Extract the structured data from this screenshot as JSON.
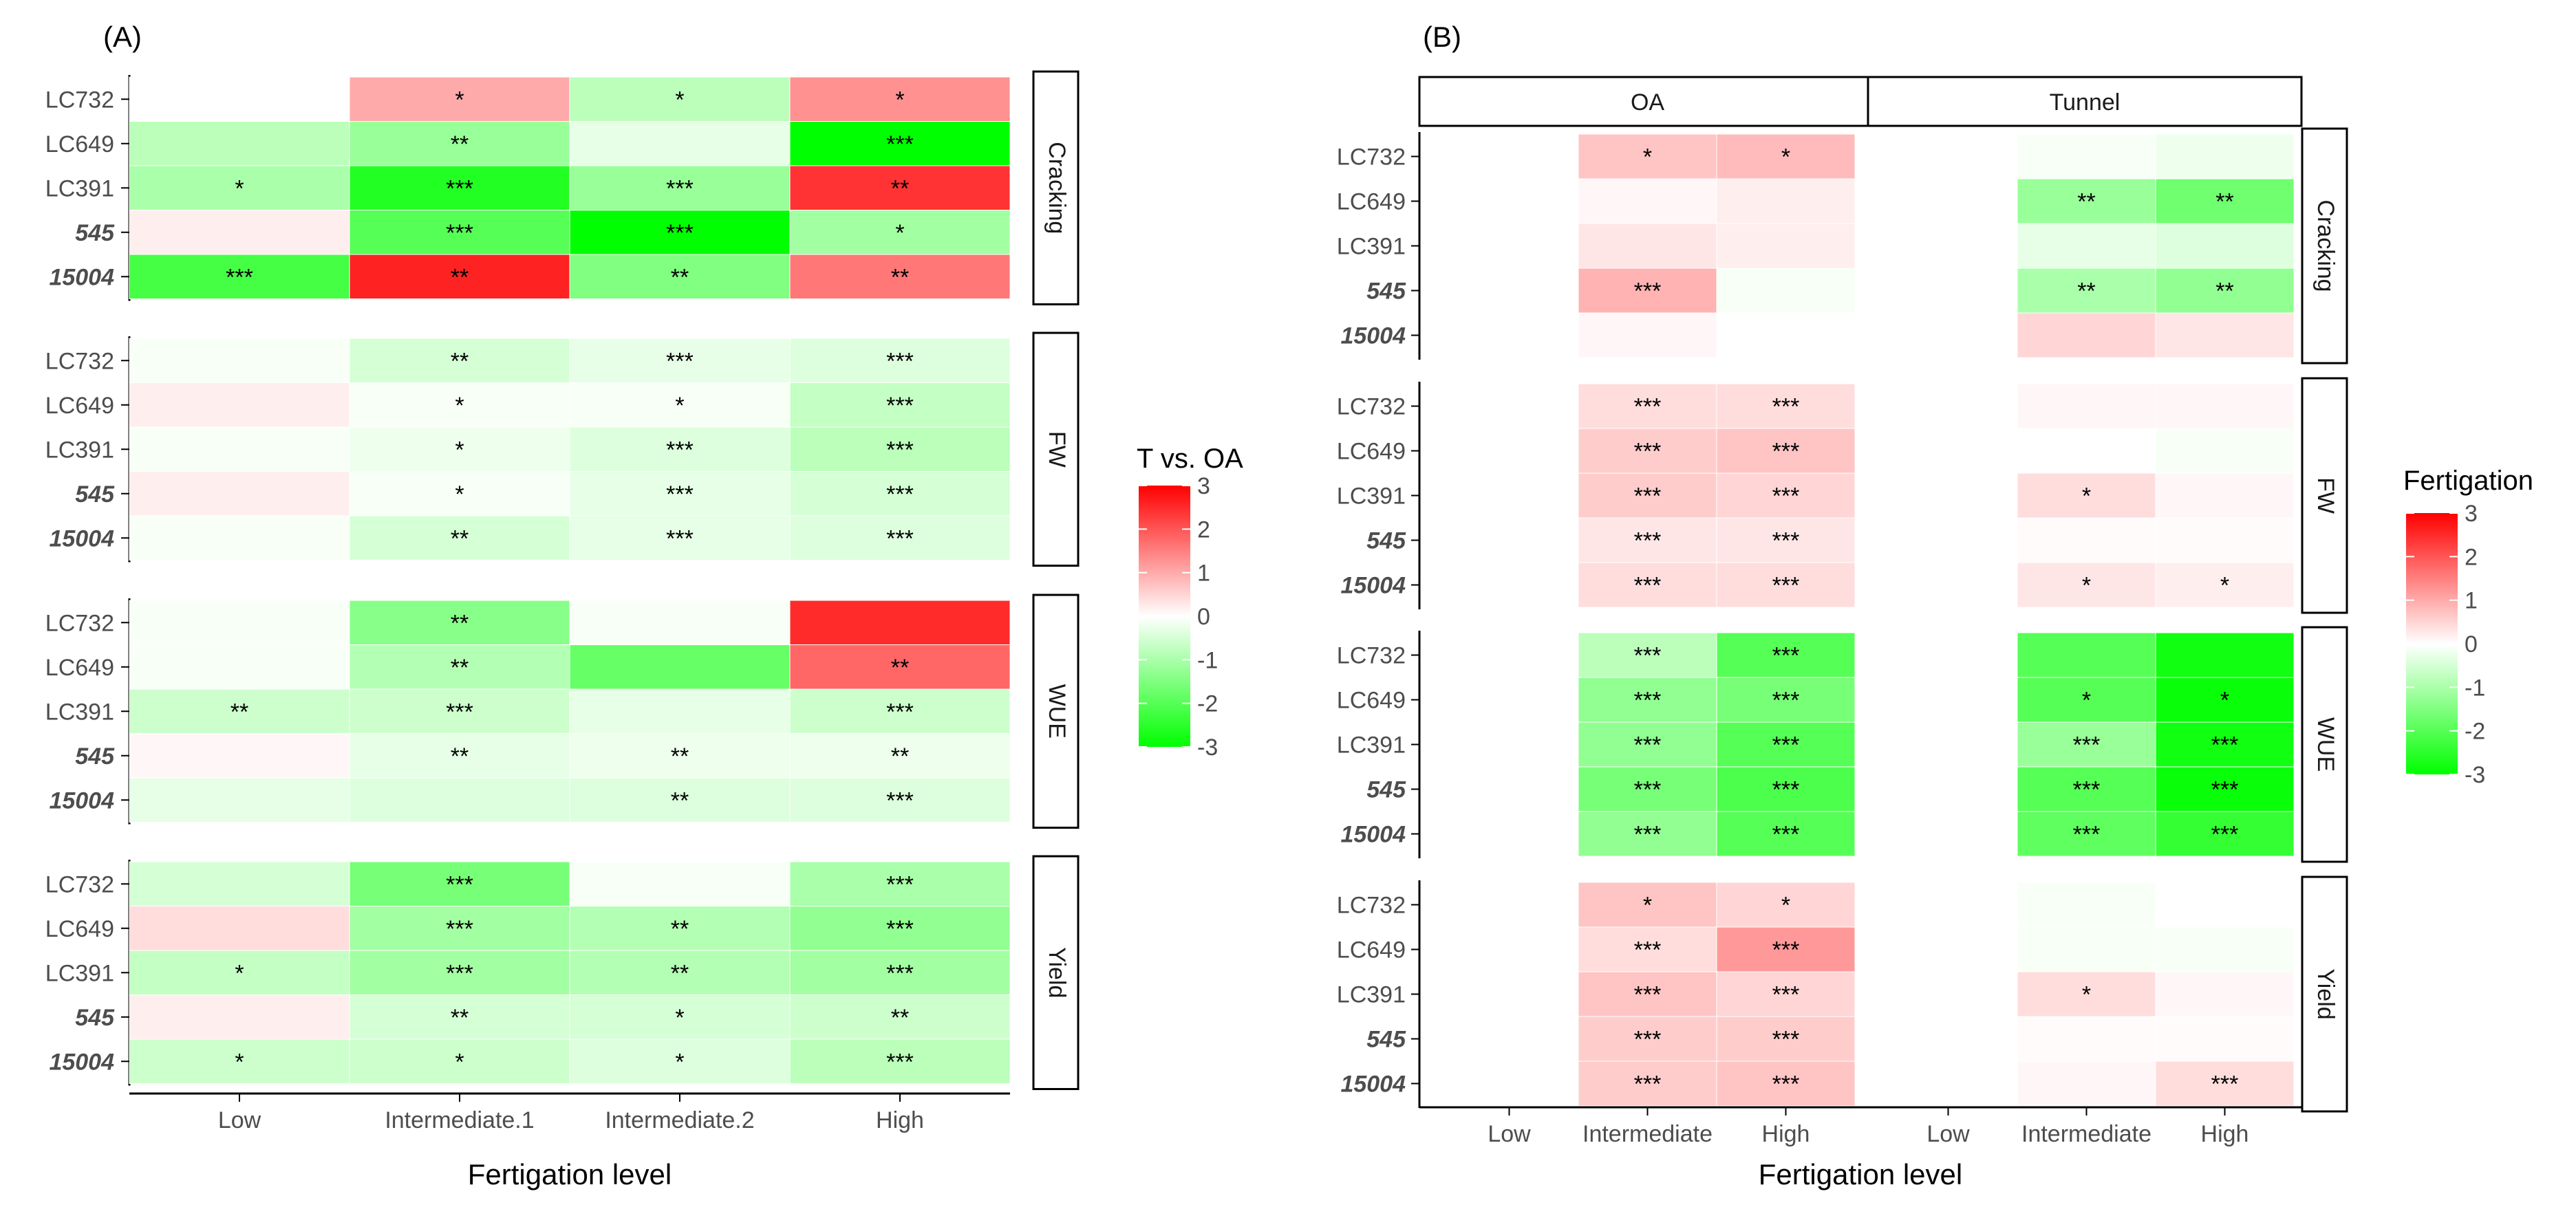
{
  "chart_data": [
    {
      "panel_label": "(A)",
      "type": "heatmap",
      "xlabel": "Fertigation level",
      "x_categories": [
        "Low",
        "Intermediate.1",
        "Intermediate.2",
        "High"
      ],
      "row_labels": [
        "LC732",
        "LC649",
        "LC391",
        "545",
        "15004"
      ],
      "italic_rows": [
        "545",
        "15004"
      ],
      "legend": {
        "title": "T vs. OA",
        "ticks": [
          3,
          2,
          1,
          0,
          -1,
          -2,
          -3
        ],
        "range": [
          -3,
          3
        ]
      },
      "facets": [
        {
          "label": "Cracking",
          "values": [
            [
              0,
              1.0,
              -0.8,
              1.3
            ],
            [
              -0.8,
              -1.2,
              -0.3,
              -3.0
            ],
            [
              -1.0,
              -2.6,
              -1.2,
              2.4
            ],
            [
              0.2,
              -2.0,
              -3.0,
              -1.1
            ],
            [
              -2.2,
              2.6,
              -1.5,
              1.6
            ]
          ],
          "stars": [
            [
              "",
              "*",
              "*",
              "*"
            ],
            [
              "",
              "**",
              "",
              "***"
            ],
            [
              "*",
              "***",
              "***",
              "**"
            ],
            [
              "",
              "***",
              "***",
              "*"
            ],
            [
              "***",
              "**",
              "**",
              "**"
            ]
          ]
        },
        {
          "label": "FW",
          "values": [
            [
              -0.1,
              -0.5,
              -0.3,
              -0.4
            ],
            [
              0.2,
              -0.1,
              -0.1,
              -0.7
            ],
            [
              -0.1,
              -0.2,
              -0.4,
              -0.8
            ],
            [
              0.2,
              -0.1,
              -0.3,
              -0.5
            ],
            [
              -0.1,
              -0.5,
              -0.3,
              -0.4
            ]
          ],
          "stars": [
            [
              "",
              "**",
              "***",
              "***"
            ],
            [
              "",
              "*",
              "*",
              "***"
            ],
            [
              "",
              "*",
              "***",
              "***"
            ],
            [
              "",
              "*",
              "***",
              "***"
            ],
            [
              "",
              "**",
              "***",
              "***"
            ]
          ]
        },
        {
          "label": "WUE",
          "values": [
            [
              -0.1,
              -1.4,
              -0.1,
              2.5
            ],
            [
              -0.1,
              -0.9,
              -1.8,
              1.8
            ],
            [
              -0.6,
              -0.6,
              -0.3,
              -0.6
            ],
            [
              0.1,
              -0.3,
              -0.2,
              -0.2
            ],
            [
              -0.3,
              -0.4,
              -0.4,
              -0.4
            ]
          ],
          "stars": [
            [
              "",
              "**",
              "",
              ""
            ],
            [
              "",
              "**",
              "",
              "**"
            ],
            [
              "**",
              "***",
              "",
              "***"
            ],
            [
              "",
              "**",
              "**",
              "**"
            ],
            [
              "",
              "",
              "**",
              "***"
            ]
          ]
        },
        {
          "label": "Yield",
          "values": [
            [
              -0.5,
              -1.6,
              -0.1,
              -1.0
            ],
            [
              0.4,
              -1.1,
              -0.9,
              -1.3
            ],
            [
              -0.7,
              -1.1,
              -0.9,
              -1.1
            ],
            [
              0.2,
              -0.5,
              -0.5,
              -0.6
            ],
            [
              -0.6,
              -0.6,
              -0.4,
              -0.8
            ]
          ],
          "stars": [
            [
              "",
              "***",
              "",
              "***"
            ],
            [
              "",
              "***",
              "**",
              "***"
            ],
            [
              "*",
              "***",
              "**",
              "***"
            ],
            [
              "",
              "**",
              "*",
              "**"
            ],
            [
              "*",
              "*",
              "*",
              "***"
            ]
          ]
        }
      ]
    },
    {
      "panel_label": "(B)",
      "type": "heatmap",
      "xlabel": "Fertigation level",
      "column_facets": [
        "OA",
        "Tunnel"
      ],
      "x_categories": [
        "Low",
        "Intermediate",
        "High"
      ],
      "row_labels": [
        "LC732",
        "LC649",
        "LC391",
        "545",
        "15004"
      ],
      "italic_rows": [
        "545",
        "15004"
      ],
      "legend": {
        "title": "Fertigation",
        "ticks": [
          3,
          2,
          1,
          0,
          -1,
          -2,
          -3
        ],
        "range": [
          -3,
          3
        ]
      },
      "facets": [
        {
          "label": "Cracking",
          "values": {
            "OA": [
              [
                null,
                0.7,
                0.8
              ],
              [
                null,
                0.1,
                0.2
              ],
              [
                null,
                0.3,
                0.2
              ],
              [
                null,
                0.9,
                -0.1
              ],
              [
                null,
                0.1,
                null
              ]
            ],
            "Tunnel": [
              [
                null,
                -0.1,
                -0.2
              ],
              [
                null,
                -1.2,
                -1.7
              ],
              [
                null,
                -0.3,
                -0.4
              ],
              [
                null,
                -1.0,
                -1.3
              ],
              [
                null,
                0.5,
                0.3
              ]
            ]
          },
          "stars": {
            "OA": [
              [
                "",
                "*",
                "*"
              ],
              [
                "",
                "",
                ""
              ],
              [
                "",
                "",
                ""
              ],
              [
                "",
                "***",
                ""
              ],
              [
                "",
                "",
                ""
              ]
            ],
            "Tunnel": [
              [
                "",
                "",
                ""
              ],
              [
                "",
                "**",
                "**"
              ],
              [
                "",
                "",
                ""
              ],
              [
                "",
                "**",
                "**"
              ],
              [
                "",
                "",
                ""
              ]
            ]
          }
        },
        {
          "label": "FW",
          "values": {
            "OA": [
              [
                null,
                0.4,
                0.4
              ],
              [
                null,
                0.6,
                0.7
              ],
              [
                null,
                0.6,
                0.5
              ],
              [
                null,
                0.3,
                0.3
              ],
              [
                null,
                0.4,
                0.4
              ]
            ],
            "Tunnel": [
              [
                null,
                0.1,
                0.1
              ],
              [
                null,
                0.0,
                -0.1
              ],
              [
                null,
                0.4,
                0.1
              ],
              [
                null,
                0.05,
                0.05
              ],
              [
                null,
                0.3,
                0.2
              ]
            ]
          },
          "stars": {
            "OA": [
              [
                "",
                "***",
                "***"
              ],
              [
                "",
                "***",
                "***"
              ],
              [
                "",
                "***",
                "***"
              ],
              [
                "",
                "***",
                "***"
              ],
              [
                "",
                "***",
                "***"
              ]
            ],
            "Tunnel": [
              [
                "",
                "",
                ""
              ],
              [
                "",
                "",
                ""
              ],
              [
                "",
                "*",
                ""
              ],
              [
                "",
                "",
                ""
              ],
              [
                "",
                "*",
                "*"
              ]
            ]
          }
        },
        {
          "label": "WUE",
          "values": {
            "OA": [
              [
                null,
                -0.8,
                -2.0
              ],
              [
                null,
                -1.3,
                -1.6
              ],
              [
                null,
                -1.3,
                -2.0
              ],
              [
                null,
                -1.6,
                -2.1
              ],
              [
                null,
                -1.3,
                -2.0
              ]
            ],
            "Tunnel": [
              [
                null,
                -2.0,
                -2.8
              ],
              [
                null,
                -2.0,
                -2.9
              ],
              [
                null,
                -1.2,
                -2.8
              ],
              [
                null,
                -2.0,
                -2.9
              ],
              [
                null,
                -1.9,
                -2.4
              ]
            ]
          },
          "stars": {
            "OA": [
              [
                "",
                "***",
                "***"
              ],
              [
                "",
                "***",
                "***"
              ],
              [
                "",
                "***",
                "***"
              ],
              [
                "",
                "***",
                "***"
              ],
              [
                "",
                "***",
                "***"
              ]
            ],
            "Tunnel": [
              [
                "",
                "",
                ""
              ],
              [
                "",
                "*",
                "*"
              ],
              [
                "",
                "***",
                "***"
              ],
              [
                "",
                "***",
                "***"
              ],
              [
                "",
                "***",
                "***"
              ]
            ]
          }
        },
        {
          "label": "Yield",
          "values": {
            "OA": [
              [
                null,
                0.7,
                0.5
              ],
              [
                null,
                0.4,
                1.2
              ],
              [
                null,
                0.7,
                0.5
              ],
              [
                null,
                0.6,
                0.6
              ],
              [
                null,
                0.6,
                0.7
              ]
            ],
            "Tunnel": [
              [
                null,
                -0.1,
                null
              ],
              [
                null,
                -0.1,
                -0.1
              ],
              [
                null,
                0.4,
                0.1
              ],
              [
                null,
                0.05,
                0.05
              ],
              [
                null,
                0.1,
                0.4
              ]
            ]
          },
          "stars": {
            "OA": [
              [
                "",
                "*",
                "*"
              ],
              [
                "",
                "***",
                "***"
              ],
              [
                "",
                "***",
                "***"
              ],
              [
                "",
                "***",
                "***"
              ],
              [
                "",
                "***",
                "***"
              ]
            ],
            "Tunnel": [
              [
                "",
                "",
                ""
              ],
              [
                "",
                "",
                ""
              ],
              [
                "",
                "*",
                ""
              ],
              [
                "",
                "",
                ""
              ],
              [
                "",
                "",
                "***"
              ]
            ]
          }
        }
      ]
    }
  ]
}
